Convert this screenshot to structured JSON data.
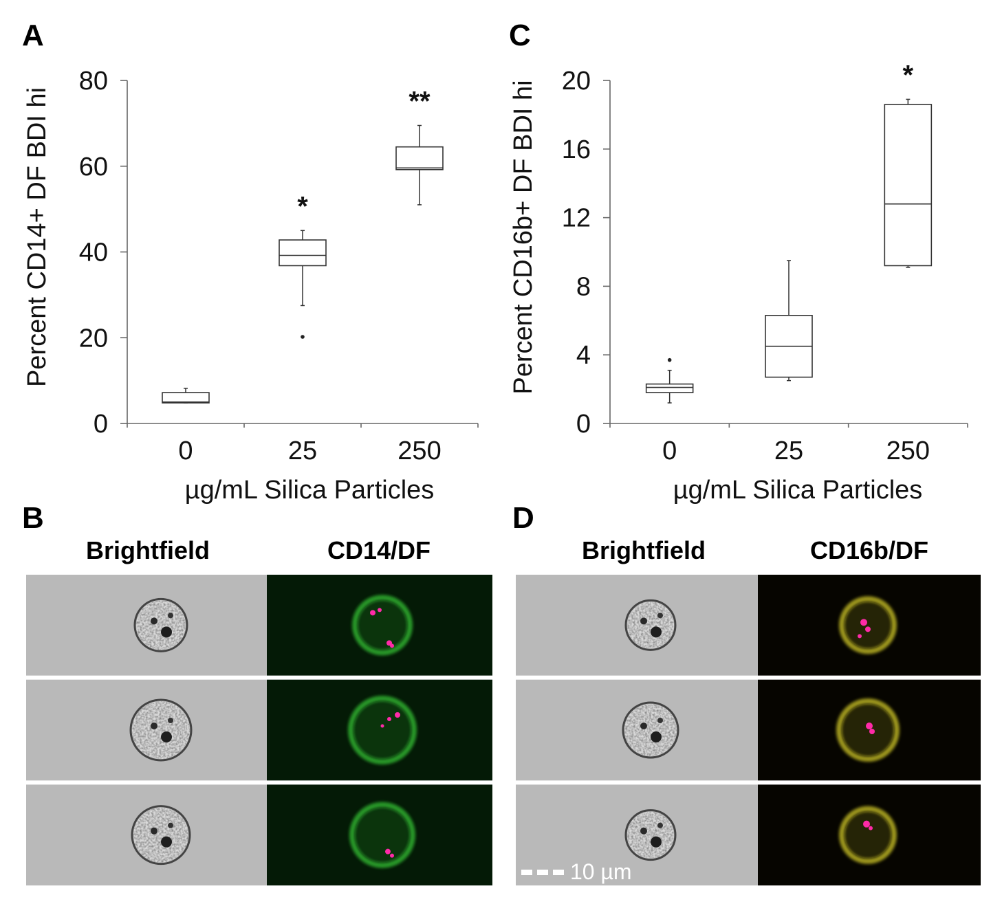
{
  "panels": {
    "a": "A",
    "b": "B",
    "c": "C",
    "d": "D"
  },
  "chart_data": [
    {
      "id": "A",
      "type": "box",
      "title": "",
      "xlabel": "µg/mL Silica Particles",
      "ylabel": "Percent CD14+ DF BDI hi",
      "ylim": [
        0,
        80
      ],
      "yticks": [
        0,
        20,
        40,
        60,
        80
      ],
      "categories": [
        "0",
        "25",
        "250"
      ],
      "boxes": [
        {
          "category": "0",
          "whisker_low": 4.8,
          "q1": 4.8,
          "median": 5.0,
          "q3": 7.2,
          "whisker_high": 8.2,
          "outliers": [],
          "significance": ""
        },
        {
          "category": "25",
          "whisker_low": 27.5,
          "q1": 36.8,
          "median": 39.2,
          "q3": 42.8,
          "whisker_high": 45.0,
          "outliers": [
            20.2
          ],
          "significance": "*"
        },
        {
          "category": "250",
          "whisker_low": 51.0,
          "q1": 59.2,
          "median": 59.6,
          "q3": 64.5,
          "whisker_high": 69.5,
          "outliers": [],
          "significance": "**"
        }
      ]
    },
    {
      "id": "C",
      "type": "box",
      "title": "",
      "xlabel": "µg/mL Silica Particles",
      "ylabel": "Percent CD16b+ DF BDI hi",
      "ylim": [
        0,
        20
      ],
      "yticks": [
        0,
        4,
        8,
        12,
        16,
        20
      ],
      "categories": [
        "0",
        "25",
        "250"
      ],
      "boxes": [
        {
          "category": "0",
          "whisker_low": 1.2,
          "q1": 1.8,
          "median": 2.1,
          "q3": 2.3,
          "whisker_high": 3.1,
          "outliers": [
            3.7
          ],
          "significance": ""
        },
        {
          "category": "25",
          "whisker_low": 2.5,
          "q1": 2.7,
          "median": 4.5,
          "q3": 6.3,
          "whisker_high": 9.5,
          "outliers": [],
          "significance": ""
        },
        {
          "category": "250",
          "whisker_low": 9.1,
          "q1": 9.2,
          "median": 12.8,
          "q3": 18.6,
          "whisker_high": 18.9,
          "outliers": [],
          "significance": "*"
        }
      ]
    }
  ],
  "imagery": {
    "B": {
      "col_titles": [
        "Brightfield",
        "CD14/DF"
      ],
      "stain_color": "#2fae2f"
    },
    "D": {
      "col_titles": [
        "Brightfield",
        "CD16b/DF"
      ],
      "stain_color": "#b8b020",
      "scale_label": "10 µm"
    },
    "particle_color": "#ff2aa8"
  }
}
